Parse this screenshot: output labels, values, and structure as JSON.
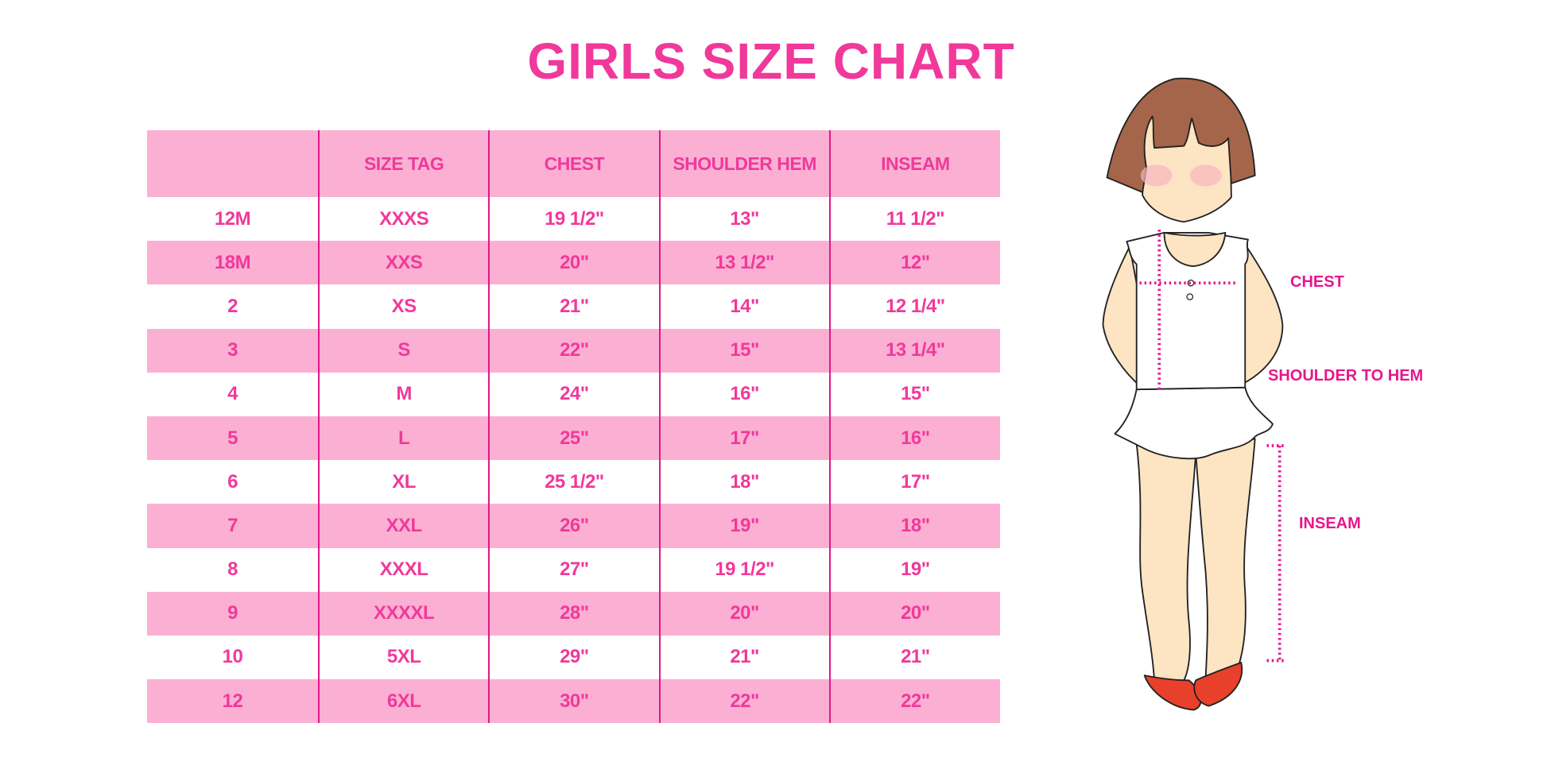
{
  "title": "GIRLS SIZE CHART",
  "colors": {
    "accent": "#f0399a",
    "row_pink": "#fbb0d3",
    "divider": "#e0168a",
    "hair": "#a5654a",
    "skin": "#fde4c3",
    "shoes": "#e8402a"
  },
  "table": {
    "headers": [
      "",
      "SIZE TAG",
      "CHEST",
      "SHOULDER HEM",
      "INSEAM"
    ],
    "rows": [
      [
        "12M",
        "XXXS",
        "19 1/2\"",
        "13\"",
        "11 1/2\""
      ],
      [
        "18M",
        "XXS",
        "20\"",
        "13 1/2\"",
        "12\""
      ],
      [
        "2",
        "XS",
        "21\"",
        "14\"",
        "12 1/4\""
      ],
      [
        "3",
        "S",
        "22\"",
        "15\"",
        "13 1/4\""
      ],
      [
        "4",
        "M",
        "24\"",
        "16\"",
        "15\""
      ],
      [
        "5",
        "L",
        "25\"",
        "17\"",
        "16\""
      ],
      [
        "6",
        "XL",
        "25 1/2\"",
        "18\"",
        "17\""
      ],
      [
        "7",
        "XXL",
        "26\"",
        "19\"",
        "18\""
      ],
      [
        "8",
        "XXXL",
        "27\"",
        "19 1/2\"",
        "19\""
      ],
      [
        "9",
        "XXXXL",
        "28\"",
        "20\"",
        "20\""
      ],
      [
        "10",
        "5XL",
        "29\"",
        "21\"",
        "21\""
      ],
      [
        "12",
        "6XL",
        "30\"",
        "22\"",
        "22\""
      ]
    ]
  },
  "figure": {
    "labels": {
      "chest": "CHEST",
      "shoulder_to_hem": "SHOULDER TO HEM",
      "inseam": "INSEAM"
    }
  }
}
